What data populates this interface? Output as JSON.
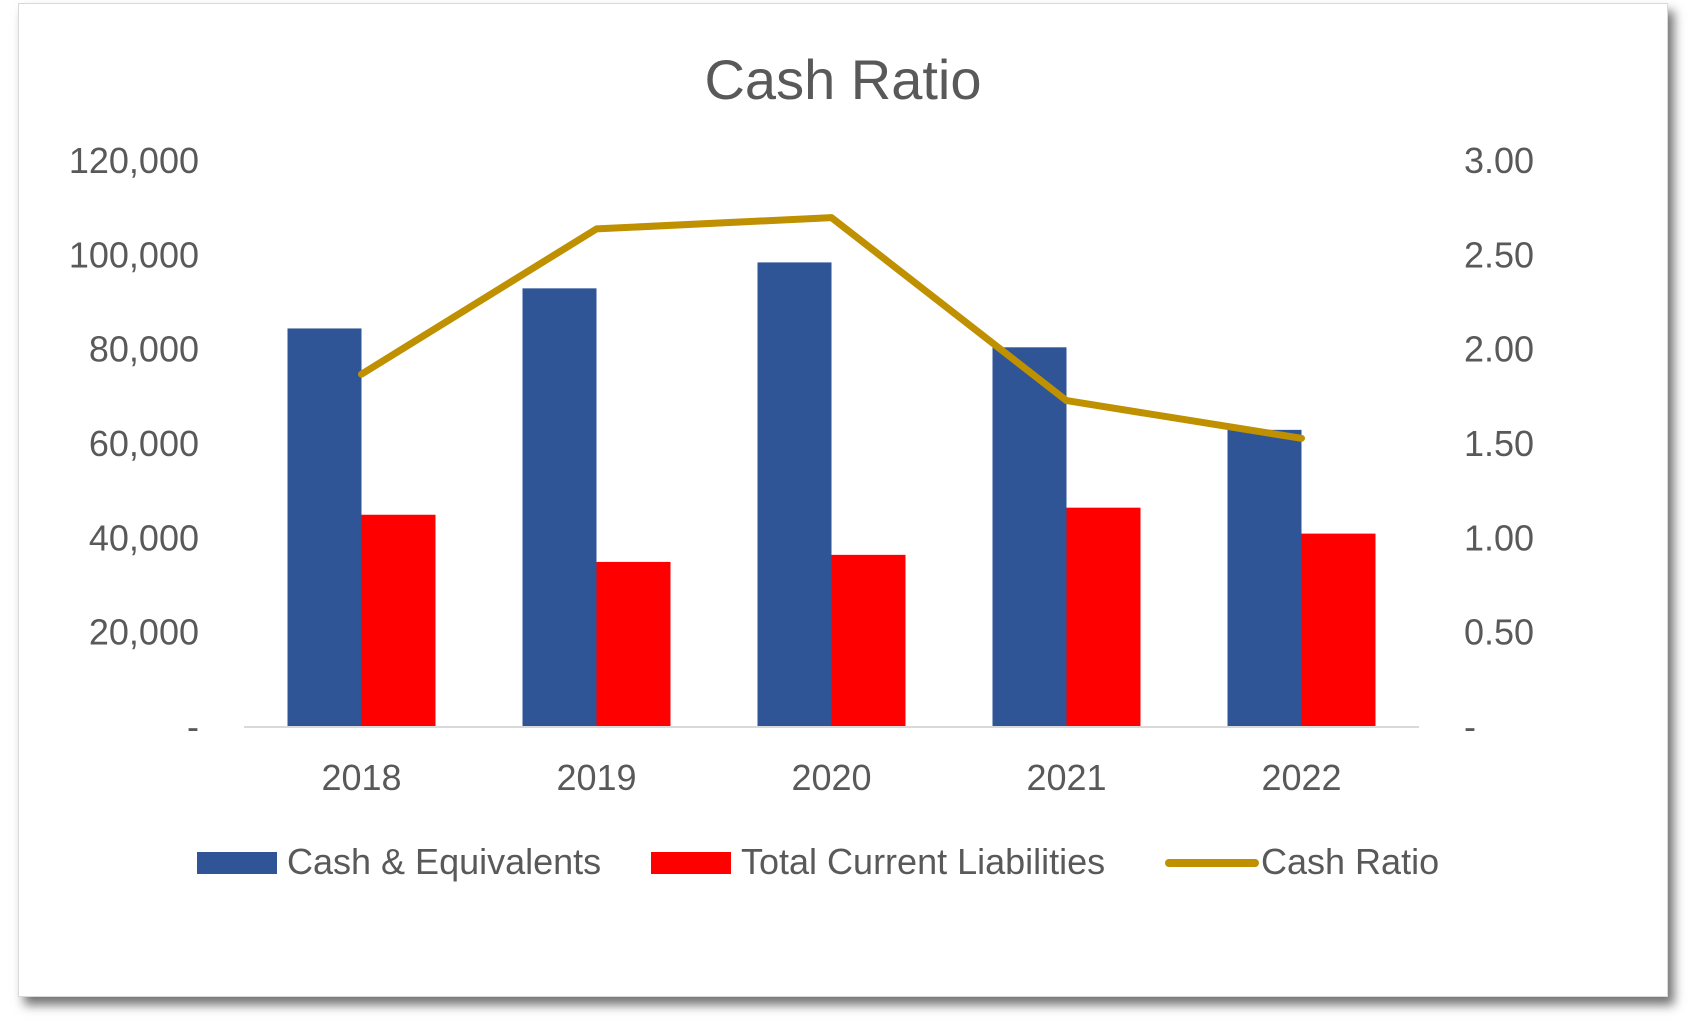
{
  "chart_data": {
    "type": "bar",
    "title": "Cash Ratio",
    "categories": [
      "2018",
      "2019",
      "2020",
      "2021",
      "2022"
    ],
    "series": [
      {
        "name": "Cash & Equivalents",
        "type": "bar",
        "axis": "left",
        "color": "#2f5597",
        "values": [
          84500,
          93000,
          98500,
          80500,
          63000
        ]
      },
      {
        "name": "Total Current Liabilities",
        "type": "bar",
        "axis": "left",
        "color": "#ff0000",
        "values": [
          45000,
          35000,
          36500,
          46500,
          41000
        ]
      },
      {
        "name": "Cash Ratio",
        "type": "line",
        "axis": "right",
        "color": "#bf9000",
        "values": [
          1.87,
          2.64,
          2.7,
          1.73,
          1.53
        ]
      }
    ],
    "y_left": {
      "min": 0,
      "max": 120000,
      "ticks": [
        "-",
        "20,000",
        "40,000",
        "60,000",
        "80,000",
        "100,000",
        "120,000"
      ]
    },
    "y_right": {
      "min": 0,
      "max": 3,
      "ticks": [
        "-",
        "0.50",
        "1.00",
        "1.50",
        "2.00",
        "2.50",
        "3.00"
      ]
    },
    "grid": false,
    "legend_position": "bottom"
  }
}
